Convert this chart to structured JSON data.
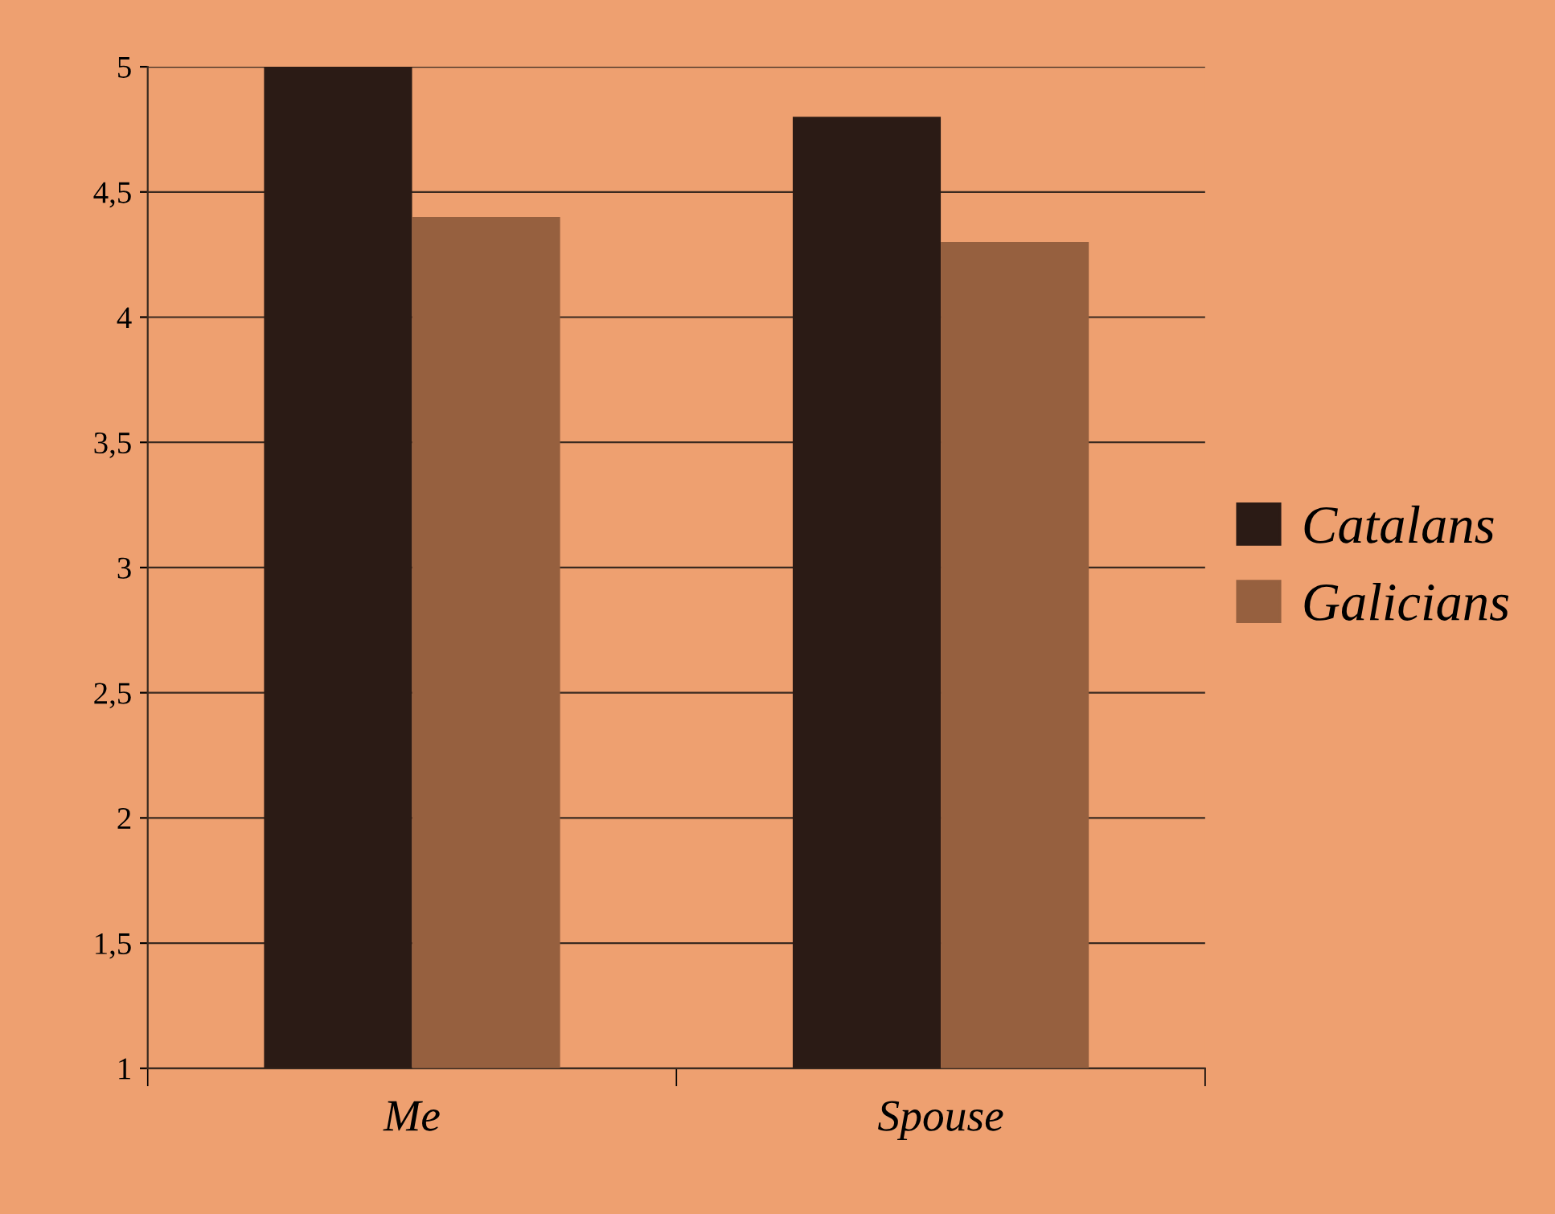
{
  "chart_data": {
    "type": "bar",
    "categories": [
      "Me",
      "Spouse"
    ],
    "series": [
      {
        "name": "Catalans",
        "color": "#2b1b15",
        "values": [
          5,
          4.8
        ]
      },
      {
        "name": "Galicians",
        "color": "#96603f",
        "values": [
          4.4,
          4.3
        ]
      }
    ],
    "ylim": [
      1,
      5
    ],
    "yticks": [
      1,
      {
        "value": 1.5,
        "label": "1,5"
      },
      2,
      {
        "value": 2.5,
        "label": "2,5"
      },
      3,
      {
        "value": 3.5,
        "label": "3,5"
      },
      4,
      {
        "value": 4.5,
        "label": "4,5"
      },
      5
    ],
    "grid": "y",
    "legend": "right"
  }
}
